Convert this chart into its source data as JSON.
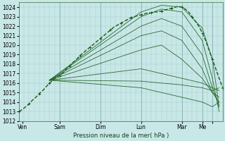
{
  "background_color": "#c8e8e8",
  "grid_color": "#a0c0c0",
  "line_color": "#1a5c1a",
  "dark_line_color": "#0a4a0a",
  "xlabel": "Pression niveau de la mer( hPa )",
  "ylim": [
    1012,
    1024.5
  ],
  "xlim": [
    0,
    120
  ],
  "yticks": [
    1012,
    1013,
    1014,
    1015,
    1016,
    1017,
    1018,
    1019,
    1020,
    1021,
    1022,
    1023,
    1024
  ],
  "day_boundaries": [
    0,
    24,
    48,
    72,
    96,
    108,
    114
  ],
  "xtick_positions": [
    2,
    24,
    48,
    72,
    96,
    108,
    114
  ],
  "xtick_labels": [
    "Ven",
    "Sam",
    "Dim",
    "Lun",
    "Mar",
    "Me",
    ""
  ],
  "convergence_x": 18,
  "convergence_y": 1016.3,
  "observed_x": [
    0,
    2,
    4,
    6,
    8,
    10,
    12,
    14,
    16,
    18,
    20,
    22,
    24,
    26,
    28,
    30,
    32,
    34,
    36,
    38,
    40,
    42,
    44,
    46,
    48,
    50,
    52,
    54,
    56,
    58,
    60,
    62,
    64,
    66,
    68,
    70,
    72,
    74,
    76,
    78,
    80,
    82,
    84,
    86,
    88,
    90,
    92,
    94,
    96,
    98,
    100,
    102,
    104,
    106,
    108,
    110,
    112,
    114,
    116,
    118,
    120
  ],
  "observed_y": [
    1013.0,
    1013.2,
    1013.5,
    1013.8,
    1014.2,
    1014.5,
    1014.9,
    1015.2,
    1015.6,
    1016.0,
    1016.3,
    1016.6,
    1016.8,
    1017.1,
    1017.5,
    1017.8,
    1018.2,
    1018.5,
    1018.9,
    1019.2,
    1019.5,
    1019.8,
    1020.1,
    1020.4,
    1020.7,
    1021.0,
    1021.3,
    1021.6,
    1021.9,
    1022.1,
    1022.3,
    1022.5,
    1022.7,
    1022.9,
    1023.0,
    1023.1,
    1023.2,
    1023.3,
    1023.4,
    1023.4,
    1023.5,
    1023.5,
    1023.6,
    1023.7,
    1023.8,
    1023.9,
    1024.0,
    1024.1,
    1024.0,
    1023.8,
    1023.5,
    1023.0,
    1022.5,
    1022.0,
    1021.3,
    1020.5,
    1019.5,
    1018.5,
    1017.5,
    1016.5,
    1015.5
  ],
  "forecast_lines": [
    {
      "x": [
        18,
        72,
        84,
        96,
        108,
        114,
        118
      ],
      "y": [
        1016.3,
        1023.5,
        1024.2,
        1024.0,
        1021.8,
        1018.5,
        1013.5
      ]
    },
    {
      "x": [
        18,
        72,
        84,
        96,
        108,
        114,
        118
      ],
      "y": [
        1016.3,
        1023.0,
        1023.8,
        1023.5,
        1020.5,
        1016.5,
        1013.0
      ]
    },
    {
      "x": [
        18,
        72,
        84,
        96,
        108,
        114,
        118
      ],
      "y": [
        1016.3,
        1022.0,
        1022.8,
        1022.0,
        1019.0,
        1015.5,
        1013.5
      ]
    },
    {
      "x": [
        18,
        72,
        84,
        96,
        108,
        114,
        118
      ],
      "y": [
        1016.3,
        1021.0,
        1021.5,
        1020.5,
        1017.5,
        1015.0,
        1014.0
      ]
    },
    {
      "x": [
        18,
        72,
        84,
        96,
        108,
        114,
        118
      ],
      "y": [
        1016.3,
        1019.5,
        1020.0,
        1018.5,
        1016.5,
        1015.0,
        1014.5
      ]
    },
    {
      "x": [
        18,
        72,
        84,
        96,
        108,
        114,
        118
      ],
      "y": [
        1016.3,
        1017.5,
        1017.0,
        1016.5,
        1016.0,
        1015.5,
        1015.2
      ]
    },
    {
      "x": [
        18,
        72,
        84,
        96,
        108,
        114,
        118
      ],
      "y": [
        1016.3,
        1016.2,
        1016.0,
        1015.8,
        1015.5,
        1015.2,
        1015.5
      ]
    },
    {
      "x": [
        18,
        72,
        84,
        96,
        108,
        114,
        118
      ],
      "y": [
        1016.3,
        1015.5,
        1015.0,
        1014.5,
        1014.0,
        1013.5,
        1014.0
      ]
    }
  ]
}
